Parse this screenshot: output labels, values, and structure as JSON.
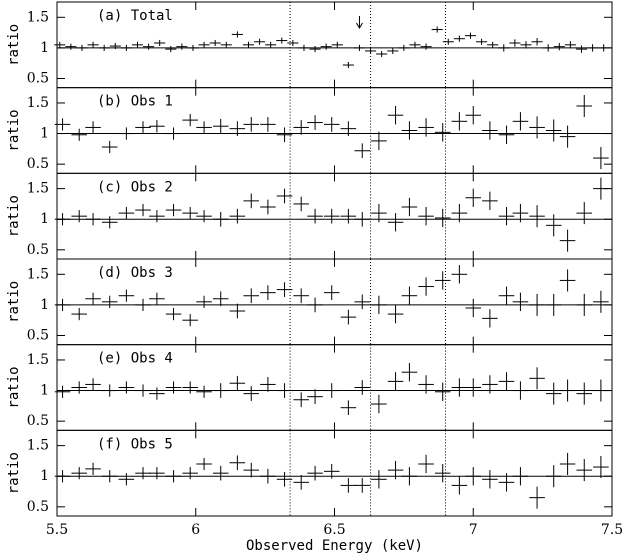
{
  "chart_data": [
    {
      "type": "errorbar",
      "title": "(a) Total",
      "ylabel": "ratio",
      "xlim": [
        5.5,
        7.5
      ],
      "ylim": [
        0.35,
        1.75
      ],
      "yticks": [
        0.5,
        1,
        1.5
      ],
      "xticks": [
        5.5,
        6,
        6.5,
        7,
        7.5
      ],
      "hline": 1,
      "reference_lines": [
        6.34,
        6.63,
        6.9
      ],
      "arrow_x": 6.59,
      "xerr": 0.02,
      "x": [
        5.51,
        5.55,
        5.59,
        5.63,
        5.67,
        5.71,
        5.75,
        5.79,
        5.83,
        5.87,
        5.91,
        5.95,
        5.99,
        6.03,
        6.07,
        6.11,
        6.15,
        6.19,
        6.23,
        6.27,
        6.31,
        6.35,
        6.39,
        6.43,
        6.47,
        6.51,
        6.55,
        6.59,
        6.63,
        6.67,
        6.71,
        6.75,
        6.79,
        6.83,
        6.87,
        6.91,
        6.95,
        6.99,
        7.03,
        7.07,
        7.11,
        7.15,
        7.19,
        7.23,
        7.27,
        7.31,
        7.35,
        7.39,
        7.43,
        7.47
      ],
      "values": [
        1.05,
        1.02,
        1.0,
        1.05,
        1.0,
        1.03,
        1.0,
        1.05,
        1.02,
        1.08,
        0.98,
        1.02,
        1.0,
        1.05,
        1.08,
        1.05,
        1.22,
        1.05,
        1.1,
        1.05,
        1.12,
        1.08,
        1.0,
        0.98,
        1.02,
        1.05,
        0.72,
        1.0,
        0.95,
        0.9,
        0.95,
        1.0,
        1.05,
        1.02,
        1.3,
        1.1,
        1.15,
        1.2,
        1.1,
        1.05,
        1.0,
        1.08,
        1.05,
        1.1,
        1.0,
        1.02,
        1.05,
        0.98,
        1.0,
        1.0
      ],
      "errors": [
        0.05,
        0.05,
        0.05,
        0.05,
        0.05,
        0.05,
        0.05,
        0.05,
        0.05,
        0.05,
        0.05,
        0.05,
        0.05,
        0.05,
        0.05,
        0.05,
        0.05,
        0.05,
        0.05,
        0.05,
        0.05,
        0.05,
        0.05,
        0.05,
        0.05,
        0.05,
        0.05,
        0.05,
        0.05,
        0.05,
        0.05,
        0.05,
        0.05,
        0.05,
        0.05,
        0.05,
        0.05,
        0.05,
        0.05,
        0.05,
        0.06,
        0.06,
        0.06,
        0.06,
        0.06,
        0.06,
        0.06,
        0.06,
        0.06,
        0.06
      ]
    },
    {
      "type": "errorbar",
      "title": "(b) Obs 1",
      "ylabel": "ratio",
      "xlim": [
        5.5,
        7.5
      ],
      "ylim": [
        0.35,
        1.75
      ],
      "yticks": [
        0.5,
        1,
        1.5
      ],
      "xticks": [
        5.5,
        6,
        6.5,
        7,
        7.5
      ],
      "hline": 1,
      "reference_lines": [
        6.34,
        6.63,
        6.9
      ],
      "xerr": 0.028,
      "x": [
        5.52,
        5.58,
        5.63,
        5.69,
        5.75,
        5.81,
        5.86,
        5.92,
        5.98,
        6.03,
        6.09,
        6.15,
        6.2,
        6.26,
        6.32,
        6.38,
        6.43,
        6.49,
        6.55,
        6.6,
        6.66,
        6.72,
        6.77,
        6.83,
        6.89,
        6.95,
        7.0,
        7.06,
        7.12,
        7.17,
        7.23,
        7.29,
        7.34,
        7.4,
        7.46
      ],
      "values": [
        1.15,
        0.98,
        1.1,
        0.78,
        1.0,
        1.1,
        1.12,
        1.0,
        1.22,
        1.1,
        1.12,
        1.08,
        1.15,
        1.15,
        0.98,
        1.1,
        1.18,
        1.15,
        1.08,
        0.72,
        0.88,
        1.3,
        1.05,
        1.1,
        1.02,
        1.2,
        1.3,
        1.05,
        0.98,
        1.2,
        1.1,
        1.05,
        0.95,
        1.45,
        0.6
      ],
      "errors": [
        0.1,
        0.1,
        0.1,
        0.1,
        0.1,
        0.1,
        0.1,
        0.1,
        0.1,
        0.1,
        0.12,
        0.12,
        0.12,
        0.12,
        0.12,
        0.12,
        0.12,
        0.12,
        0.12,
        0.12,
        0.15,
        0.15,
        0.15,
        0.15,
        0.15,
        0.15,
        0.15,
        0.15,
        0.15,
        0.15,
        0.18,
        0.18,
        0.18,
        0.18,
        0.18
      ]
    },
    {
      "type": "errorbar",
      "title": "(c) Obs 2",
      "ylabel": "ratio",
      "xlim": [
        5.5,
        7.5
      ],
      "ylim": [
        0.35,
        1.75
      ],
      "yticks": [
        0.5,
        1,
        1.5
      ],
      "xticks": [
        5.5,
        6,
        6.5,
        7,
        7.5
      ],
      "hline": 1,
      "reference_lines": [
        6.34,
        6.63,
        6.9
      ],
      "xerr": 0.028,
      "x": [
        5.52,
        5.58,
        5.63,
        5.69,
        5.75,
        5.81,
        5.86,
        5.92,
        5.98,
        6.03,
        6.09,
        6.15,
        6.2,
        6.26,
        6.32,
        6.38,
        6.43,
        6.49,
        6.55,
        6.6,
        6.66,
        6.72,
        6.77,
        6.83,
        6.89,
        6.95,
        7.0,
        7.06,
        7.12,
        7.17,
        7.23,
        7.29,
        7.34,
        7.4,
        7.46
      ],
      "values": [
        1.0,
        1.05,
        1.0,
        0.95,
        1.1,
        1.15,
        1.05,
        1.15,
        1.1,
        1.05,
        1.0,
        1.05,
        1.3,
        1.2,
        1.38,
        1.25,
        1.05,
        1.05,
        1.05,
        1.0,
        1.1,
        0.95,
        1.2,
        1.05,
        1.02,
        1.1,
        1.35,
        1.3,
        1.05,
        1.1,
        1.05,
        0.9,
        0.65,
        1.1,
        1.5
      ],
      "errors": [
        0.1,
        0.1,
        0.1,
        0.1,
        0.1,
        0.1,
        0.1,
        0.1,
        0.1,
        0.1,
        0.12,
        0.12,
        0.12,
        0.12,
        0.12,
        0.12,
        0.12,
        0.12,
        0.12,
        0.12,
        0.15,
        0.15,
        0.15,
        0.15,
        0.15,
        0.15,
        0.15,
        0.15,
        0.15,
        0.15,
        0.18,
        0.18,
        0.18,
        0.18,
        0.18
      ]
    },
    {
      "type": "errorbar",
      "title": "(d) Obs 3",
      "ylabel": "ratio",
      "xlim": [
        5.5,
        7.5
      ],
      "ylim": [
        0.35,
        1.75
      ],
      "yticks": [
        0.5,
        1,
        1.5
      ],
      "xticks": [
        5.5,
        6,
        6.5,
        7,
        7.5
      ],
      "hline": 1,
      "reference_lines": [
        6.34,
        6.63,
        6.9
      ],
      "xerr": 0.028,
      "x": [
        5.52,
        5.58,
        5.63,
        5.69,
        5.75,
        5.81,
        5.86,
        5.92,
        5.98,
        6.03,
        6.09,
        6.15,
        6.2,
        6.26,
        6.32,
        6.38,
        6.43,
        6.49,
        6.55,
        6.6,
        6.66,
        6.72,
        6.77,
        6.83,
        6.89,
        6.95,
        7.0,
        7.06,
        7.12,
        7.17,
        7.23,
        7.29,
        7.34,
        7.4,
        7.46
      ],
      "values": [
        1.0,
        0.85,
        1.1,
        1.05,
        1.15,
        1.0,
        1.1,
        0.85,
        0.75,
        1.05,
        1.1,
        0.9,
        1.15,
        1.2,
        1.25,
        1.15,
        1.0,
        1.2,
        0.8,
        1.05,
        1.0,
        0.85,
        1.15,
        1.3,
        1.4,
        1.5,
        0.95,
        0.78,
        1.15,
        1.05,
        1.0,
        1.0,
        1.4,
        1.0,
        1.05
      ],
      "errors": [
        0.1,
        0.1,
        0.1,
        0.1,
        0.1,
        0.1,
        0.1,
        0.1,
        0.1,
        0.1,
        0.12,
        0.12,
        0.12,
        0.12,
        0.12,
        0.12,
        0.12,
        0.12,
        0.12,
        0.12,
        0.15,
        0.15,
        0.15,
        0.15,
        0.15,
        0.15,
        0.15,
        0.15,
        0.15,
        0.15,
        0.18,
        0.18,
        0.18,
        0.18,
        0.18
      ]
    },
    {
      "type": "errorbar",
      "title": "(e) Obs 4",
      "ylabel": "ratio",
      "xlim": [
        5.5,
        7.5
      ],
      "ylim": [
        0.35,
        1.75
      ],
      "yticks": [
        0.5,
        1,
        1.5
      ],
      "xticks": [
        5.5,
        6,
        6.5,
        7,
        7.5
      ],
      "hline": 1,
      "reference_lines": [
        6.34,
        6.63,
        6.9
      ],
      "xerr": 0.028,
      "x": [
        5.52,
        5.58,
        5.63,
        5.69,
        5.75,
        5.81,
        5.86,
        5.92,
        5.98,
        6.03,
        6.09,
        6.15,
        6.2,
        6.26,
        6.32,
        6.38,
        6.43,
        6.49,
        6.55,
        6.6,
        6.66,
        6.72,
        6.77,
        6.83,
        6.89,
        6.95,
        7.0,
        7.06,
        7.12,
        7.17,
        7.23,
        7.29,
        7.34,
        7.4,
        7.46
      ],
      "values": [
        0.98,
        1.05,
        1.1,
        1.0,
        1.05,
        1.0,
        0.95,
        1.05,
        1.05,
        0.98,
        1.0,
        1.12,
        0.95,
        1.1,
        1.0,
        0.85,
        0.9,
        1.0,
        0.72,
        1.05,
        0.78,
        1.15,
        1.3,
        1.1,
        0.98,
        1.05,
        1.05,
        1.1,
        1.15,
        1.0,
        1.2,
        0.95,
        1.0,
        0.95,
        1.0
      ],
      "errors": [
        0.1,
        0.1,
        0.1,
        0.1,
        0.1,
        0.1,
        0.1,
        0.1,
        0.1,
        0.1,
        0.12,
        0.12,
        0.12,
        0.12,
        0.12,
        0.12,
        0.12,
        0.12,
        0.12,
        0.12,
        0.15,
        0.15,
        0.15,
        0.15,
        0.15,
        0.15,
        0.15,
        0.15,
        0.15,
        0.15,
        0.18,
        0.18,
        0.18,
        0.18,
        0.18
      ]
    },
    {
      "type": "errorbar",
      "title": "(f) Obs 5",
      "ylabel": "ratio",
      "xlabel": "Observed Energy (keV)",
      "xlim": [
        5.5,
        7.5
      ],
      "ylim": [
        0.35,
        1.75
      ],
      "yticks": [
        0.5,
        1,
        1.5
      ],
      "xticks": [
        5.5,
        6,
        6.5,
        7,
        7.5
      ],
      "hline": 1,
      "reference_lines": [
        6.34,
        6.63,
        6.9
      ],
      "xerr": 0.028,
      "x": [
        5.52,
        5.58,
        5.63,
        5.69,
        5.75,
        5.81,
        5.86,
        5.92,
        5.98,
        6.03,
        6.09,
        6.15,
        6.2,
        6.26,
        6.32,
        6.38,
        6.43,
        6.49,
        6.55,
        6.6,
        6.66,
        6.72,
        6.77,
        6.83,
        6.89,
        6.95,
        7.0,
        7.06,
        7.12,
        7.17,
        7.23,
        7.29,
        7.34,
        7.4,
        7.46
      ],
      "values": [
        1.0,
        1.05,
        1.12,
        1.0,
        0.95,
        1.05,
        1.05,
        1.0,
        1.05,
        1.2,
        1.05,
        1.22,
        1.1,
        1.0,
        0.95,
        0.9,
        1.05,
        1.08,
        0.85,
        0.85,
        0.95,
        1.1,
        1.0,
        1.2,
        1.05,
        0.85,
        1.0,
        0.95,
        0.9,
        1.0,
        0.65,
        1.0,
        1.2,
        1.1,
        1.15
      ],
      "errors": [
        0.1,
        0.1,
        0.1,
        0.1,
        0.1,
        0.1,
        0.1,
        0.1,
        0.1,
        0.1,
        0.12,
        0.12,
        0.12,
        0.12,
        0.12,
        0.12,
        0.12,
        0.12,
        0.12,
        0.12,
        0.15,
        0.15,
        0.15,
        0.15,
        0.15,
        0.15,
        0.15,
        0.15,
        0.15,
        0.15,
        0.18,
        0.18,
        0.18,
        0.18,
        0.18
      ]
    }
  ]
}
